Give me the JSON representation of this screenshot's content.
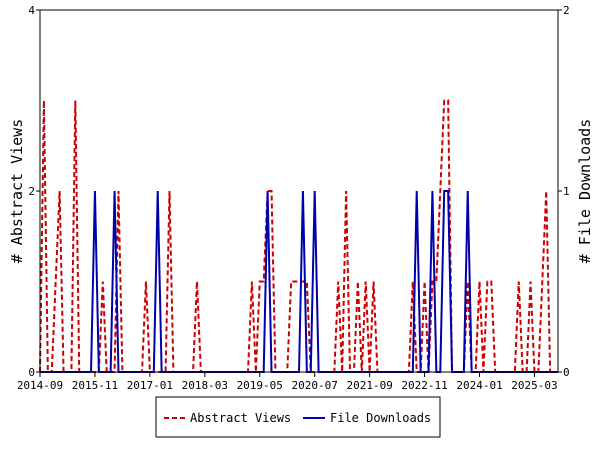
{
  "chart_data": {
    "type": "line",
    "x_tick_labels": [
      "2014-09",
      "2015-11",
      "2017-01",
      "2018-03",
      "2019-05",
      "2020-07",
      "2021-09",
      "2022-11",
      "2024-01",
      "2025-03"
    ],
    "x_range": [
      "2014-09",
      "2025-09"
    ],
    "y_left": {
      "label": "# Abstract Views",
      "range": [
        0,
        4
      ],
      "ticks": [
        "0",
        "2",
        "4"
      ]
    },
    "y_right": {
      "label": "# File Downloads",
      "range": [
        0,
        2
      ],
      "ticks": [
        "0",
        "1",
        "2"
      ]
    },
    "grid": false,
    "legend_position": "bottom-center",
    "series": [
      {
        "name": "Abstract Views",
        "axis": "left",
        "color": "#cc0000",
        "style": "dashed",
        "points": [
          [
            "2014-09",
            0
          ],
          [
            "2014-10",
            3
          ],
          [
            "2014-11",
            0
          ],
          [
            "2014-12",
            0
          ],
          [
            "2015-01",
            1
          ],
          [
            "2015-02",
            2
          ],
          [
            "2015-03",
            0
          ],
          [
            "2015-04",
            0
          ],
          [
            "2015-05",
            0
          ],
          [
            "2015-06",
            3
          ],
          [
            "2015-07",
            0
          ],
          [
            "2015-08",
            0
          ],
          [
            "2015-09",
            0
          ],
          [
            "2015-10",
            0
          ],
          [
            "2015-11",
            0
          ],
          [
            "2015-12",
            0
          ],
          [
            "2016-01",
            1
          ],
          [
            "2016-02",
            0
          ],
          [
            "2016-03",
            0
          ],
          [
            "2016-04",
            0
          ],
          [
            "2016-05",
            2
          ],
          [
            "2016-06",
            0
          ],
          [
            "2016-07",
            0
          ],
          [
            "2016-08",
            0
          ],
          [
            "2016-09",
            0
          ],
          [
            "2016-10",
            0
          ],
          [
            "2016-11",
            0
          ],
          [
            "2016-12",
            1
          ],
          [
            "2017-01",
            0
          ],
          [
            "2017-02",
            0
          ],
          [
            "2017-03",
            0
          ],
          [
            "2017-04",
            0
          ],
          [
            "2017-05",
            0
          ],
          [
            "2017-06",
            2
          ],
          [
            "2017-07",
            0
          ],
          [
            "2017-08",
            0
          ],
          [
            "2017-09",
            0
          ],
          [
            "2017-10",
            0
          ],
          [
            "2017-11",
            0
          ],
          [
            "2017-12",
            0
          ],
          [
            "2018-01",
            1
          ],
          [
            "2018-02",
            0
          ],
          [
            "2018-03",
            0
          ],
          [
            "2018-04",
            0
          ],
          [
            "2018-05",
            0
          ],
          [
            "2018-06",
            0
          ],
          [
            "2018-07",
            0
          ],
          [
            "2018-08",
            0
          ],
          [
            "2018-09",
            0
          ],
          [
            "2018-10",
            0
          ],
          [
            "2018-11",
            0
          ],
          [
            "2018-12",
            0
          ],
          [
            "2019-01",
            0
          ],
          [
            "2019-02",
            0
          ],
          [
            "2019-03",
            1
          ],
          [
            "2019-04",
            0
          ],
          [
            "2019-05",
            1
          ],
          [
            "2019-06",
            1
          ],
          [
            "2019-07",
            2
          ],
          [
            "2019-08",
            2
          ],
          [
            "2019-09",
            0
          ],
          [
            "2019-10",
            0
          ],
          [
            "2019-11",
            0
          ],
          [
            "2019-12",
            0
          ],
          [
            "2020-01",
            1
          ],
          [
            "2020-02",
            1
          ],
          [
            "2020-03",
            1
          ],
          [
            "2020-04",
            1
          ],
          [
            "2020-05",
            1
          ],
          [
            "2020-06",
            0
          ],
          [
            "2020-07",
            0
          ],
          [
            "2020-08",
            0
          ],
          [
            "2020-09",
            0
          ],
          [
            "2020-10",
            0
          ],
          [
            "2020-11",
            0
          ],
          [
            "2020-12",
            0
          ],
          [
            "2021-01",
            1
          ],
          [
            "2021-02",
            0
          ],
          [
            "2021-03",
            2
          ],
          [
            "2021-04",
            0
          ],
          [
            "2021-05",
            0
          ],
          [
            "2021-06",
            1
          ],
          [
            "2021-07",
            0
          ],
          [
            "2021-08",
            1
          ],
          [
            "2021-09",
            0
          ],
          [
            "2021-10",
            1
          ],
          [
            "2021-11",
            0
          ],
          [
            "2021-12",
            0
          ],
          [
            "2022-01",
            0
          ],
          [
            "2022-02",
            0
          ],
          [
            "2022-03",
            0
          ],
          [
            "2022-04",
            0
          ],
          [
            "2022-05",
            0
          ],
          [
            "2022-06",
            0
          ],
          [
            "2022-07",
            0
          ],
          [
            "2022-08",
            1
          ],
          [
            "2022-09",
            0
          ],
          [
            "2022-10",
            0
          ],
          [
            "2022-11",
            1
          ],
          [
            "2022-12",
            0
          ],
          [
            "2023-01",
            1
          ],
          [
            "2023-02",
            1
          ],
          [
            "2023-03",
            2
          ],
          [
            "2023-04",
            3
          ],
          [
            "2023-05",
            3
          ],
          [
            "2023-06",
            0
          ],
          [
            "2023-07",
            0
          ],
          [
            "2023-08",
            0
          ],
          [
            "2023-09",
            0
          ],
          [
            "2023-10",
            1
          ],
          [
            "2023-11",
            0
          ],
          [
            "2023-12",
            0
          ],
          [
            "2024-01",
            1
          ],
          [
            "2024-02",
            0
          ],
          [
            "2024-03",
            1
          ],
          [
            "2024-04",
            1
          ],
          [
            "2024-05",
            0
          ],
          [
            "2024-06",
            0
          ],
          [
            "2024-07",
            0
          ],
          [
            "2024-08",
            0
          ],
          [
            "2024-09",
            0
          ],
          [
            "2024-10",
            0
          ],
          [
            "2024-11",
            1
          ],
          [
            "2024-12",
            0
          ],
          [
            "2025-01",
            0
          ],
          [
            "2025-02",
            1
          ],
          [
            "2025-03",
            0
          ],
          [
            "2025-04",
            0
          ],
          [
            "2025-05",
            1
          ],
          [
            "2025-06",
            2
          ],
          [
            "2025-07",
            0
          ],
          [
            "2025-08",
            0
          ],
          [
            "2025-09",
            0
          ]
        ]
      },
      {
        "name": "File Downloads",
        "axis": "right",
        "color": "#0000aa",
        "style": "solid",
        "points": [
          [
            "2014-09",
            0
          ],
          [
            "2014-10",
            0
          ],
          [
            "2014-11",
            0
          ],
          [
            "2014-12",
            0
          ],
          [
            "2015-01",
            0
          ],
          [
            "2015-02",
            0
          ],
          [
            "2015-03",
            0
          ],
          [
            "2015-04",
            0
          ],
          [
            "2015-05",
            0
          ],
          [
            "2015-06",
            0
          ],
          [
            "2015-07",
            0
          ],
          [
            "2015-08",
            0
          ],
          [
            "2015-09",
            0
          ],
          [
            "2015-10",
            0
          ],
          [
            "2015-11",
            1
          ],
          [
            "2015-12",
            0
          ],
          [
            "2016-01",
            0
          ],
          [
            "2016-02",
            0
          ],
          [
            "2016-03",
            0
          ],
          [
            "2016-04",
            1
          ],
          [
            "2016-05",
            0
          ],
          [
            "2016-06",
            0
          ],
          [
            "2016-07",
            0
          ],
          [
            "2016-08",
            0
          ],
          [
            "2016-09",
            0
          ],
          [
            "2016-10",
            0
          ],
          [
            "2016-11",
            0
          ],
          [
            "2016-12",
            0
          ],
          [
            "2017-01",
            0
          ],
          [
            "2017-02",
            0
          ],
          [
            "2017-03",
            1
          ],
          [
            "2017-04",
            0
          ],
          [
            "2017-05",
            0
          ],
          [
            "2017-06",
            0
          ],
          [
            "2017-07",
            0
          ],
          [
            "2017-08",
            0
          ],
          [
            "2017-09",
            0
          ],
          [
            "2017-10",
            0
          ],
          [
            "2017-11",
            0
          ],
          [
            "2017-12",
            0
          ],
          [
            "2018-01",
            0
          ],
          [
            "2018-02",
            0
          ],
          [
            "2018-03",
            0
          ],
          [
            "2018-04",
            0
          ],
          [
            "2018-05",
            0
          ],
          [
            "2018-06",
            0
          ],
          [
            "2018-07",
            0
          ],
          [
            "2018-08",
            0
          ],
          [
            "2018-09",
            0
          ],
          [
            "2018-10",
            0
          ],
          [
            "2018-11",
            0
          ],
          [
            "2018-12",
            0
          ],
          [
            "2019-01",
            0
          ],
          [
            "2019-02",
            0
          ],
          [
            "2019-03",
            0
          ],
          [
            "2019-04",
            0
          ],
          [
            "2019-05",
            0
          ],
          [
            "2019-06",
            0
          ],
          [
            "2019-07",
            1
          ],
          [
            "2019-08",
            0
          ],
          [
            "2019-09",
            0
          ],
          [
            "2019-10",
            0
          ],
          [
            "2019-11",
            0
          ],
          [
            "2019-12",
            0
          ],
          [
            "2020-01",
            0
          ],
          [
            "2020-02",
            0
          ],
          [
            "2020-03",
            0
          ],
          [
            "2020-04",
            1
          ],
          [
            "2020-05",
            0
          ],
          [
            "2020-06",
            0
          ],
          [
            "2020-07",
            1
          ],
          [
            "2020-08",
            0
          ],
          [
            "2020-09",
            0
          ],
          [
            "2020-10",
            0
          ],
          [
            "2020-11",
            0
          ],
          [
            "2020-12",
            0
          ],
          [
            "2021-01",
            0
          ],
          [
            "2021-02",
            0
          ],
          [
            "2021-03",
            0
          ],
          [
            "2021-04",
            0
          ],
          [
            "2021-05",
            0
          ],
          [
            "2021-06",
            0
          ],
          [
            "2021-07",
            0
          ],
          [
            "2021-08",
            0
          ],
          [
            "2021-09",
            0
          ],
          [
            "2021-10",
            0
          ],
          [
            "2021-11",
            0
          ],
          [
            "2021-12",
            0
          ],
          [
            "2022-01",
            0
          ],
          [
            "2022-02",
            0
          ],
          [
            "2022-03",
            0
          ],
          [
            "2022-04",
            0
          ],
          [
            "2022-05",
            0
          ],
          [
            "2022-06",
            0
          ],
          [
            "2022-07",
            0
          ],
          [
            "2022-08",
            0
          ],
          [
            "2022-09",
            1
          ],
          [
            "2022-10",
            0
          ],
          [
            "2022-11",
            0
          ],
          [
            "2022-12",
            0
          ],
          [
            "2023-01",
            1
          ],
          [
            "2023-02",
            0
          ],
          [
            "2023-03",
            0
          ],
          [
            "2023-04",
            1
          ],
          [
            "2023-05",
            1
          ],
          [
            "2023-06",
            0
          ],
          [
            "2023-07",
            0
          ],
          [
            "2023-08",
            0
          ],
          [
            "2023-09",
            0
          ],
          [
            "2023-10",
            1
          ],
          [
            "2023-11",
            0
          ],
          [
            "2023-12",
            0
          ],
          [
            "2024-01",
            0
          ],
          [
            "2024-02",
            0
          ],
          [
            "2024-03",
            0
          ],
          [
            "2024-04",
            0
          ],
          [
            "2024-05",
            0
          ],
          [
            "2024-06",
            0
          ],
          [
            "2024-07",
            0
          ],
          [
            "2024-08",
            0
          ],
          [
            "2024-09",
            0
          ],
          [
            "2024-10",
            0
          ],
          [
            "2024-11",
            0
          ],
          [
            "2024-12",
            0
          ],
          [
            "2025-01",
            0
          ],
          [
            "2025-02",
            0
          ],
          [
            "2025-03",
            0
          ],
          [
            "2025-04",
            0
          ],
          [
            "2025-05",
            0
          ],
          [
            "2025-06",
            0
          ],
          [
            "2025-07",
            0
          ],
          [
            "2025-08",
            0
          ],
          [
            "2025-09",
            0
          ]
        ]
      }
    ]
  }
}
